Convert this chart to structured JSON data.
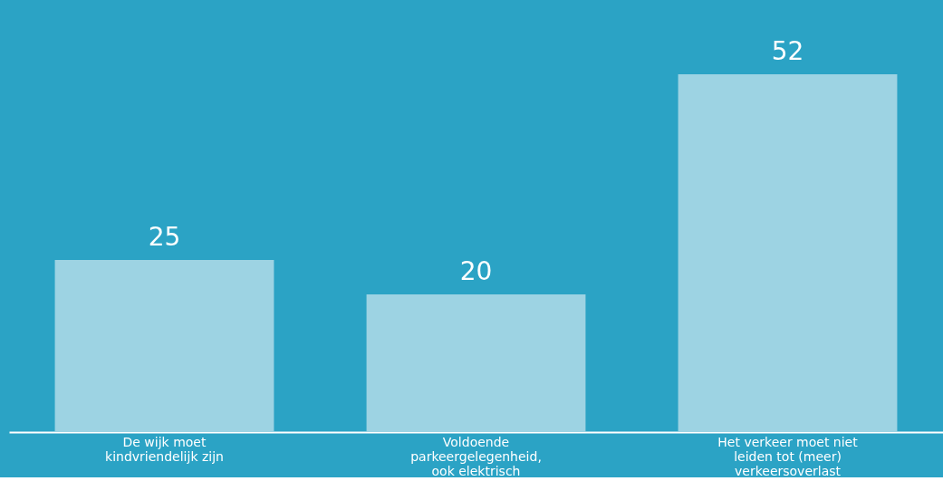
{
  "chart_data": {
    "type": "bar",
    "categories": [
      "De wijk moet kindvriendelijk zijn",
      "Voldoende parkeergelegenheid, ook elektrisch",
      "Het verkeer moet niet leiden tot (meer) verkeersoverlast"
    ],
    "values": [
      25,
      20,
      52
    ],
    "color": "#9dd3e3",
    "data_labels": true,
    "grid": false
  }
}
